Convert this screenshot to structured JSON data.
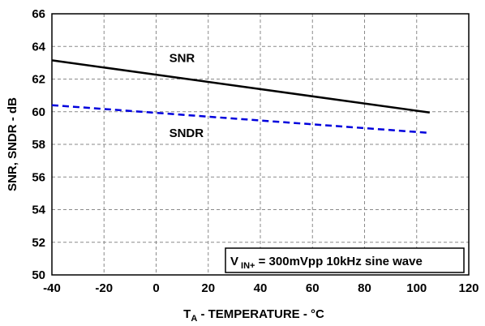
{
  "chart_data": {
    "type": "line",
    "xlabel": {
      "main": "T",
      "sub": "A",
      "rest": " - TEMPERATURE - °C"
    },
    "ylabel": "SNR, SNDR - dB",
    "xlim": [
      -40,
      120
    ],
    "ylim": [
      50,
      66
    ],
    "xticks": [
      -40,
      -20,
      0,
      20,
      40,
      60,
      80,
      100,
      120
    ],
    "yticks": [
      50,
      52,
      54,
      56,
      58,
      60,
      62,
      64,
      66
    ],
    "grid": true,
    "grid_style": "dashed",
    "series": [
      {
        "name": "SNR",
        "color": "#000000",
        "line_style": "solid",
        "x": [
          -40,
          105
        ],
        "y": [
          63.15,
          59.95
        ]
      },
      {
        "name": "SNDR",
        "color": "#0000dd",
        "line_style": "dashed",
        "x": [
          -40,
          105
        ],
        "y": [
          60.4,
          58.7
        ]
      }
    ],
    "annotation": {
      "v": "V",
      "sub": "IN+",
      "eq": " = 300mVpp 10kHz sine wave",
      "placement": "bottom-right"
    }
  }
}
